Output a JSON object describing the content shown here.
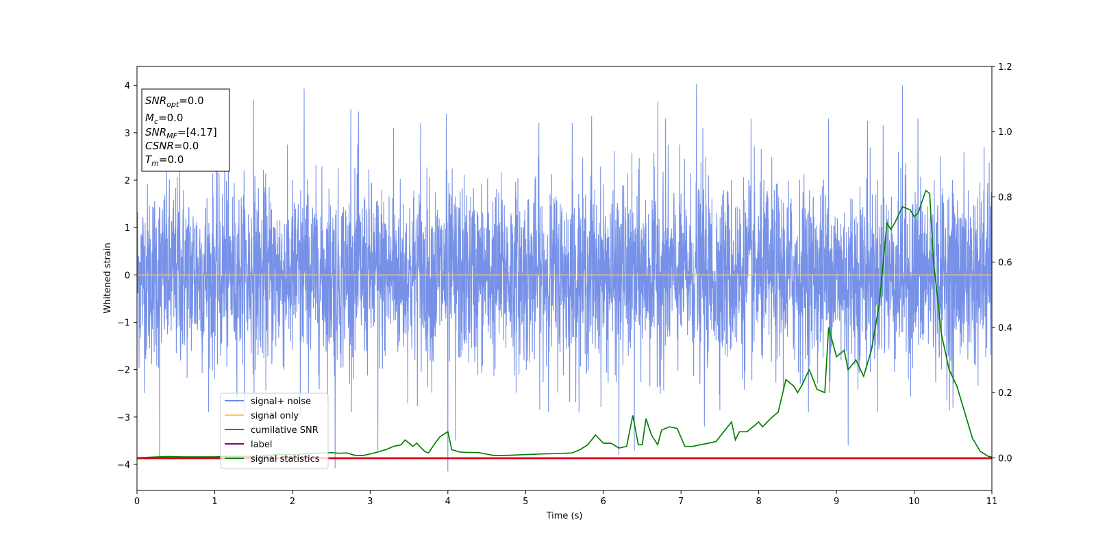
{
  "chart_data": {
    "type": "line",
    "xlabel": "Time (s)",
    "ylabel": "Whitened strain",
    "xlim": [
      0,
      11
    ],
    "ylim_left": [
      -4.55,
      4.4
    ],
    "ylim_right": [
      -0.1,
      1.2
    ],
    "x_ticks": [
      "0",
      "1",
      "2",
      "3",
      "4",
      "5",
      "6",
      "7",
      "8",
      "9",
      "10",
      "11"
    ],
    "y_left_ticks": [
      "−4",
      "−3",
      "−2",
      "−1",
      "0",
      "1",
      "2",
      "3",
      "4"
    ],
    "y_left_tick_values": [
      -4,
      -3,
      -2,
      -1,
      0,
      1,
      2,
      3,
      4
    ],
    "y_right_ticks": [
      "0.0",
      "0.2",
      "0.4",
      "0.6",
      "0.8",
      "1.0",
      "1.2"
    ],
    "y_right_tick_values": [
      0,
      0.2,
      0.4,
      0.6,
      0.8,
      1.0,
      1.2
    ],
    "grid": false,
    "legend_position": "lower-left",
    "legend": [
      {
        "label": "signal+ noise",
        "color": "#6f8be6"
      },
      {
        "label": "signal only",
        "color": "#f5c67a"
      },
      {
        "label": "cumilative SNR",
        "color": "#ff0000"
      },
      {
        "label": "label",
        "color": "#800080"
      },
      {
        "label": "signal statistics",
        "color": "#008000"
      }
    ],
    "info_box": {
      "snr_opt": {
        "name": "SNR",
        "sub": "opt",
        "value": "=0.0"
      },
      "mc": {
        "name": "M",
        "sub": "c",
        "value": "=0.0"
      },
      "snr_mf": {
        "name": "SNR",
        "sub": "MF",
        "value": "=[4.17]"
      },
      "csnr": {
        "name": "CSNR",
        "sub": "",
        "value": "=0.0"
      },
      "tm": {
        "name": "T",
        "sub": "m",
        "value": "=0.0"
      }
    },
    "series": [
      {
        "name": "signal+ noise",
        "axis": "left",
        "color": "#6f8be6",
        "description_stats": {
          "typical_range": [
            -2.5,
            2.5
          ],
          "extremes": [
            -4.15,
            4.02
          ]
        },
        "peaks": [
          [
            0.29,
            -3.88
          ],
          [
            0.55,
            2.45
          ],
          [
            1.13,
            3.38
          ],
          [
            1.5,
            3.7
          ],
          [
            2.15,
            3.93
          ],
          [
            2.1,
            -3.0
          ],
          [
            2.55,
            -4.08
          ],
          [
            2.75,
            3.5
          ],
          [
            2.85,
            3.45
          ],
          [
            3.1,
            -3.7
          ],
          [
            3.3,
            3.1
          ],
          [
            3.65,
            3.2
          ],
          [
            4.0,
            -4.15
          ],
          [
            3.98,
            3.4
          ],
          [
            4.1,
            -3.5
          ],
          [
            5.17,
            3.2
          ],
          [
            5.6,
            3.2
          ],
          [
            5.85,
            3.35
          ],
          [
            6.2,
            -3.8
          ],
          [
            6.4,
            -3.72
          ],
          [
            6.7,
            3.65
          ],
          [
            6.8,
            3.3
          ],
          [
            7.2,
            4.02
          ],
          [
            7.28,
            3.1
          ],
          [
            7.3,
            -3.2
          ],
          [
            7.9,
            3.3
          ],
          [
            8.9,
            3.3
          ],
          [
            9.15,
            -3.6
          ],
          [
            9.4,
            3.25
          ],
          [
            9.6,
            3.15
          ],
          [
            9.85,
            4.0
          ],
          [
            10.05,
            3.3
          ],
          [
            10.5,
            -2.8
          ],
          [
            10.9,
            2.7
          ]
        ]
      },
      {
        "name": "signal only",
        "axis": "left",
        "color": "#f5c67a",
        "x": [
          0,
          11
        ],
        "y": [
          0,
          0
        ]
      },
      {
        "name": "cumilative SNR",
        "axis": "left",
        "color": "#ff0000",
        "x": [
          0,
          11
        ],
        "y": [
          -3.88,
          -3.88
        ]
      },
      {
        "name": "label",
        "axis": "right",
        "color": "#800080",
        "x": [
          0,
          11
        ],
        "y": [
          0,
          0
        ]
      },
      {
        "name": "signal statistics",
        "axis": "right",
        "color": "#008000",
        "x": [
          0,
          0.2,
          0.4,
          0.6,
          0.8,
          1.0,
          1.2,
          1.4,
          1.6,
          1.8,
          2.0,
          2.2,
          2.4,
          2.5,
          2.6,
          2.7,
          2.8,
          2.9,
          3.0,
          3.1,
          3.2,
          3.3,
          3.4,
          3.45,
          3.55,
          3.6,
          3.7,
          3.75,
          3.85,
          3.9,
          4.0,
          4.05,
          4.15,
          4.2,
          4.4,
          4.6,
          4.8,
          5.0,
          5.2,
          5.4,
          5.6,
          5.7,
          5.8,
          5.9,
          6.0,
          6.1,
          6.2,
          6.3,
          6.38,
          6.45,
          6.5,
          6.55,
          6.62,
          6.7,
          6.75,
          6.85,
          6.95,
          7.05,
          7.15,
          7.25,
          7.35,
          7.45,
          7.55,
          7.65,
          7.7,
          7.75,
          7.85,
          7.95,
          8.0,
          8.05,
          8.15,
          8.25,
          8.35,
          8.45,
          8.5,
          8.55,
          8.65,
          8.75,
          8.85,
          8.9,
          9.0,
          9.1,
          9.15,
          9.25,
          9.35,
          9.45,
          9.55,
          9.65,
          9.7,
          9.75,
          9.85,
          9.95,
          10.0,
          10.05,
          10.15,
          10.2,
          10.25,
          10.35,
          10.45,
          10.55,
          10.65,
          10.75,
          10.85,
          10.95,
          11.0
        ],
        "y": [
          0.0,
          0.002,
          0.004,
          0.003,
          0.003,
          0.003,
          0.005,
          0.004,
          0.006,
          0.01,
          0.01,
          0.013,
          0.015,
          0.016,
          0.014,
          0.015,
          0.008,
          0.007,
          0.012,
          0.018,
          0.025,
          0.035,
          0.04,
          0.055,
          0.035,
          0.045,
          0.02,
          0.015,
          0.05,
          0.065,
          0.08,
          0.025,
          0.018,
          0.017,
          0.016,
          0.007,
          0.008,
          0.01,
          0.012,
          0.013,
          0.015,
          0.025,
          0.04,
          0.07,
          0.045,
          0.045,
          0.03,
          0.035,
          0.13,
          0.04,
          0.04,
          0.12,
          0.07,
          0.04,
          0.085,
          0.095,
          0.09,
          0.035,
          0.035,
          0.04,
          0.045,
          0.05,
          0.08,
          0.11,
          0.055,
          0.08,
          0.08,
          0.1,
          0.11,
          0.095,
          0.12,
          0.14,
          0.24,
          0.22,
          0.2,
          0.22,
          0.27,
          0.21,
          0.2,
          0.4,
          0.31,
          0.33,
          0.27,
          0.3,
          0.25,
          0.33,
          0.47,
          0.72,
          0.7,
          0.72,
          0.77,
          0.76,
          0.74,
          0.75,
          0.82,
          0.81,
          0.6,
          0.38,
          0.27,
          0.22,
          0.14,
          0.06,
          0.02,
          0.005,
          0.002
        ]
      }
    ]
  }
}
